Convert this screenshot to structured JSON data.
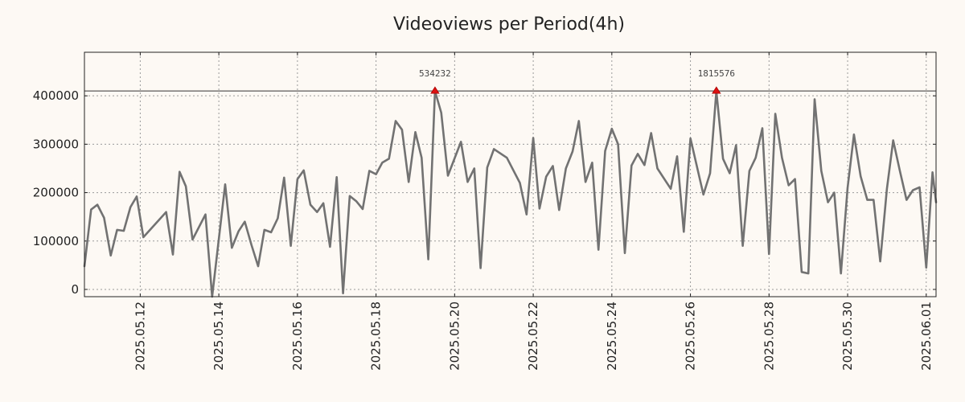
{
  "chart_data": {
    "type": "line",
    "title": "Videoviews per Period(4h)",
    "xlabel": "",
    "ylabel": "",
    "x_start": "2025-05-10T14:00",
    "x_end": "2025-06-01T06:00",
    "x_period_hours": 4,
    "xlim_days": [
      0,
      21.67
    ],
    "ylim": [
      -15000,
      490000
    ],
    "yticks": [
      0,
      100000,
      200000,
      300000,
      400000
    ],
    "ytick_labels": [
      "0",
      "100000",
      "200000",
      "300000",
      "400000"
    ],
    "xtick_days": [
      1.42,
      3.42,
      5.42,
      7.42,
      9.42,
      11.42,
      13.42,
      15.42,
      17.42,
      19.42,
      21.42
    ],
    "xtick_labels": [
      "2025.05.12",
      "2025.05.14",
      "2025.05.16",
      "2025.05.18",
      "2025.05.20",
      "2025.05.22",
      "2025.05.24",
      "2025.05.26",
      "2025.05.28",
      "2025.05.30",
      "2025.06.01"
    ],
    "reference_line": 410000,
    "grid": true,
    "line_color": "#727272",
    "marker_color": "#dd1111",
    "peaks": [
      {
        "day": 8.92,
        "y": 410000,
        "label": "534232"
      },
      {
        "day": 16.08,
        "y": 410000,
        "label": "1815576"
      }
    ],
    "series": [
      {
        "name": "Videoviews",
        "points": [
          [
            0.0,
            48000
          ],
          [
            0.17,
            165000
          ],
          [
            0.33,
            175000
          ],
          [
            0.5,
            148000
          ],
          [
            0.67,
            70000
          ],
          [
            0.83,
            123000
          ],
          [
            1.0,
            121000
          ],
          [
            1.17,
            170000
          ],
          [
            1.33,
            192000
          ],
          [
            1.5,
            108000
          ],
          [
            2.08,
            160000
          ],
          [
            2.25,
            72000
          ],
          [
            2.42,
            243000
          ],
          [
            2.58,
            213000
          ],
          [
            2.75,
            103000
          ],
          [
            3.08,
            155000
          ],
          [
            3.25,
            -15000
          ],
          [
            3.58,
            217000
          ],
          [
            3.75,
            86000
          ],
          [
            3.92,
            120000
          ],
          [
            4.08,
            140000
          ],
          [
            4.25,
            92000
          ],
          [
            4.42,
            48000
          ],
          [
            4.58,
            123000
          ],
          [
            4.75,
            118000
          ],
          [
            4.92,
            147000
          ],
          [
            5.08,
            231000
          ],
          [
            5.25,
            90000
          ],
          [
            5.42,
            228000
          ],
          [
            5.58,
            246000
          ],
          [
            5.75,
            175000
          ],
          [
            5.92,
            160000
          ],
          [
            6.08,
            178000
          ],
          [
            6.25,
            88000
          ],
          [
            6.42,
            232000
          ],
          [
            6.58,
            -8000
          ],
          [
            6.75,
            193000
          ],
          [
            6.92,
            182000
          ],
          [
            7.08,
            166000
          ],
          [
            7.25,
            245000
          ],
          [
            7.42,
            238000
          ],
          [
            7.58,
            262000
          ],
          [
            7.75,
            270000
          ],
          [
            7.92,
            348000
          ],
          [
            8.08,
            330000
          ],
          [
            8.25,
            222000
          ],
          [
            8.42,
            325000
          ],
          [
            8.58,
            272000
          ],
          [
            8.75,
            62000
          ],
          [
            8.92,
            410000
          ],
          [
            9.08,
            365000
          ],
          [
            9.25,
            235000
          ],
          [
            9.58,
            305000
          ],
          [
            9.75,
            222000
          ],
          [
            9.92,
            250000
          ],
          [
            10.08,
            44000
          ],
          [
            10.25,
            252000
          ],
          [
            10.42,
            290000
          ],
          [
            10.75,
            272000
          ],
          [
            11.08,
            220000
          ],
          [
            11.25,
            155000
          ],
          [
            11.42,
            313000
          ],
          [
            11.58,
            167000
          ],
          [
            11.75,
            233000
          ],
          [
            11.92,
            255000
          ],
          [
            12.08,
            164000
          ],
          [
            12.25,
            250000
          ],
          [
            12.42,
            285000
          ],
          [
            12.58,
            348000
          ],
          [
            12.75,
            222000
          ],
          [
            12.92,
            262000
          ],
          [
            13.08,
            82000
          ],
          [
            13.25,
            286000
          ],
          [
            13.42,
            332000
          ],
          [
            13.58,
            300000
          ],
          [
            13.75,
            75000
          ],
          [
            13.92,
            256000
          ],
          [
            14.08,
            280000
          ],
          [
            14.25,
            257000
          ],
          [
            14.42,
            323000
          ],
          [
            14.58,
            250000
          ],
          [
            14.92,
            208000
          ],
          [
            15.08,
            275000
          ],
          [
            15.25,
            119000
          ],
          [
            15.42,
            312000
          ],
          [
            15.75,
            196000
          ],
          [
            15.92,
            240000
          ],
          [
            16.08,
            410000
          ],
          [
            16.25,
            270000
          ],
          [
            16.42,
            240000
          ],
          [
            16.58,
            298000
          ],
          [
            16.75,
            90000
          ],
          [
            16.92,
            245000
          ],
          [
            17.08,
            272000
          ],
          [
            17.25,
            333000
          ],
          [
            17.42,
            73000
          ],
          [
            17.58,
            363000
          ],
          [
            17.75,
            272000
          ],
          [
            17.92,
            215000
          ],
          [
            18.08,
            228000
          ],
          [
            18.25,
            36000
          ],
          [
            18.42,
            33000
          ],
          [
            18.58,
            393000
          ],
          [
            18.75,
            245000
          ],
          [
            18.92,
            180000
          ],
          [
            19.08,
            200000
          ],
          [
            19.25,
            33000
          ],
          [
            19.42,
            210000
          ],
          [
            19.58,
            320000
          ],
          [
            19.75,
            234000
          ],
          [
            19.92,
            185000
          ],
          [
            20.08,
            185000
          ],
          [
            20.25,
            58000
          ],
          [
            20.42,
            208000
          ],
          [
            20.58,
            308000
          ],
          [
            20.75,
            245000
          ],
          [
            20.92,
            185000
          ],
          [
            21.08,
            205000
          ],
          [
            21.25,
            211000
          ],
          [
            21.42,
            45000
          ],
          [
            21.58,
            242000
          ],
          [
            21.67,
            180000
          ]
        ]
      }
    ]
  }
}
